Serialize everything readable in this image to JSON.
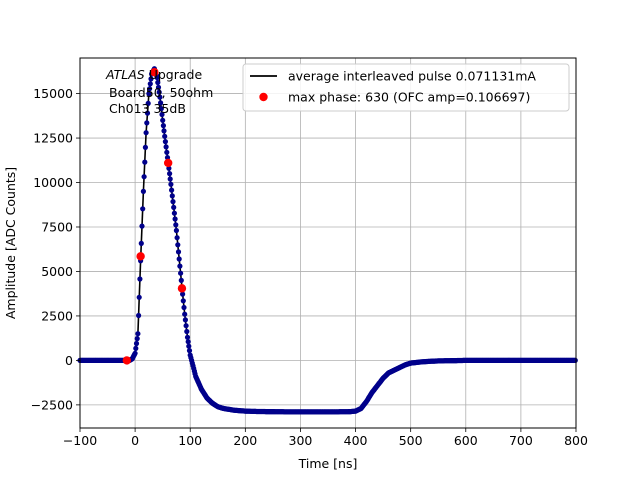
{
  "chart_data": {
    "type": "line",
    "xlabel": "Time [ns]",
    "ylabel": "Amplitude [ADC Counts]",
    "xlim": [
      -100,
      800
    ],
    "ylim": [
      -3800,
      17000
    ],
    "x_ticks": [
      -100,
      0,
      100,
      200,
      300,
      400,
      500,
      600,
      700,
      800
    ],
    "y_ticks": [
      -2500,
      0,
      2500,
      5000,
      7500,
      10000,
      12500,
      15000
    ],
    "x_tick_labels": [
      "−100",
      "0",
      "100",
      "200",
      "300",
      "400",
      "500",
      "600",
      "700",
      "800"
    ],
    "y_tick_labels": [
      "−2500",
      "0",
      "2500",
      "5000",
      "7500",
      "10000",
      "12500",
      "15000"
    ],
    "grid": true,
    "legend_position": "top-right",
    "annotation": {
      "line1_italic": "ATLAS",
      "line1_rest": " Upgrade",
      "line2": "Board50, 50ohm",
      "line3": "Ch013 35dB"
    },
    "series": [
      {
        "name": "average interleaved pulse 0.071131mA",
        "style": "line",
        "line_color": "#000000",
        "marker_color": "#00008b",
        "points": [
          [
            -100,
            0
          ],
          [
            -90,
            0
          ],
          [
            -80,
            0
          ],
          [
            -70,
            0
          ],
          [
            -60,
            0
          ],
          [
            -50,
            0
          ],
          [
            -40,
            0
          ],
          [
            -30,
            0
          ],
          [
            -20,
            0
          ],
          [
            -15,
            0
          ],
          [
            -10,
            0
          ],
          [
            -5,
            100
          ],
          [
            0,
            400
          ],
          [
            5,
            1500
          ],
          [
            10,
            5600
          ],
          [
            15,
            9500
          ],
          [
            20,
            12800
          ],
          [
            25,
            15000
          ],
          [
            30,
            16100
          ],
          [
            35,
            16400
          ],
          [
            40,
            15900
          ],
          [
            45,
            14800
          ],
          [
            50,
            13500
          ],
          [
            55,
            12300
          ],
          [
            60,
            11100
          ],
          [
            65,
            9900
          ],
          [
            70,
            8600
          ],
          [
            75,
            7300
          ],
          [
            80,
            5700
          ],
          [
            85,
            4100
          ],
          [
            90,
            2600
          ],
          [
            95,
            1300
          ],
          [
            100,
            300
          ],
          [
            110,
            -900
          ],
          [
            120,
            -1600
          ],
          [
            130,
            -2100
          ],
          [
            140,
            -2400
          ],
          [
            150,
            -2600
          ],
          [
            160,
            -2700
          ],
          [
            170,
            -2750
          ],
          [
            180,
            -2800
          ],
          [
            200,
            -2850
          ],
          [
            220,
            -2870
          ],
          [
            250,
            -2880
          ],
          [
            280,
            -2890
          ],
          [
            300,
            -2890
          ],
          [
            330,
            -2890
          ],
          [
            360,
            -2890
          ],
          [
            390,
            -2880
          ],
          [
            400,
            -2850
          ],
          [
            410,
            -2700
          ],
          [
            420,
            -2300
          ],
          [
            430,
            -1800
          ],
          [
            440,
            -1400
          ],
          [
            450,
            -1000
          ],
          [
            460,
            -700
          ],
          [
            470,
            -550
          ],
          [
            480,
            -400
          ],
          [
            490,
            -250
          ],
          [
            500,
            -150
          ],
          [
            520,
            -80
          ],
          [
            540,
            -40
          ],
          [
            560,
            -20
          ],
          [
            580,
            -10
          ],
          [
            600,
            0
          ],
          [
            650,
            0
          ],
          [
            700,
            0
          ],
          [
            750,
            0
          ],
          [
            800,
            0
          ]
        ]
      },
      {
        "name": "max phase: 630 (OFC amp=0.106697)",
        "style": "markers",
        "marker_color": "#ff0000",
        "points": [
          [
            -15,
            0
          ],
          [
            10,
            5850
          ],
          [
            35,
            16200
          ],
          [
            60,
            11100
          ],
          [
            85,
            4050
          ]
        ]
      }
    ]
  }
}
